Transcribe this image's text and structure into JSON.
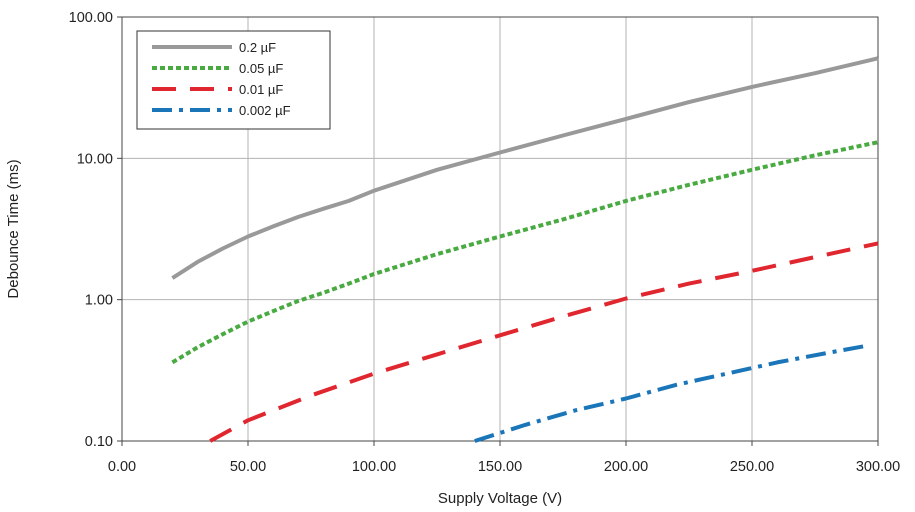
{
  "chart_data": {
    "type": "line",
    "title": "",
    "xlabel": "Supply Voltage (V)",
    "ylabel": "Debounce Time (ms)",
    "xlim": [
      0,
      300
    ],
    "ylim": [
      0.1,
      100
    ],
    "yscale": "log",
    "grid": true,
    "legend_position": "top-left",
    "x_ticks": [
      "0.00",
      "50.00",
      "100.00",
      "150.00",
      "200.00",
      "250.00",
      "300.00"
    ],
    "y_ticks": [
      {
        "value": 0.1,
        "label": "0.10"
      },
      {
        "value": 1,
        "label": "1.00"
      },
      {
        "value": 10,
        "label": "10.00"
      },
      {
        "value": 100,
        "label": "100.00"
      }
    ],
    "series": [
      {
        "name": "0.2 µF",
        "color": "#999999",
        "style": "solid",
        "points": [
          [
            20,
            1.42
          ],
          [
            30,
            1.85
          ],
          [
            40,
            2.3
          ],
          [
            50,
            2.8
          ],
          [
            60,
            3.3
          ],
          [
            70,
            3.85
          ],
          [
            80,
            4.4
          ],
          [
            90,
            5.0
          ],
          [
            100,
            5.9
          ],
          [
            125,
            8.3
          ],
          [
            150,
            11.0
          ],
          [
            175,
            14.5
          ],
          [
            200,
            19.0
          ],
          [
            225,
            25.0
          ],
          [
            250,
            32.0
          ],
          [
            275,
            40.0
          ],
          [
            300,
            51.0
          ]
        ]
      },
      {
        "name": "0.05 µF",
        "color": "#4aaa42",
        "style": "dotted",
        "points": [
          [
            20,
            0.36
          ],
          [
            30,
            0.46
          ],
          [
            40,
            0.57
          ],
          [
            50,
            0.7
          ],
          [
            60,
            0.83
          ],
          [
            70,
            0.98
          ],
          [
            80,
            1.12
          ],
          [
            90,
            1.3
          ],
          [
            100,
            1.52
          ],
          [
            125,
            2.1
          ],
          [
            150,
            2.8
          ],
          [
            175,
            3.7
          ],
          [
            200,
            5.0
          ],
          [
            225,
            6.5
          ],
          [
            250,
            8.3
          ],
          [
            275,
            10.5
          ],
          [
            300,
            13.0
          ]
        ]
      },
      {
        "name": "0.01 µF",
        "color": "#e0262e",
        "style": "dashed",
        "points": [
          [
            35,
            0.1
          ],
          [
            50,
            0.14
          ],
          [
            75,
            0.21
          ],
          [
            100,
            0.3
          ],
          [
            125,
            0.41
          ],
          [
            150,
            0.56
          ],
          [
            175,
            0.76
          ],
          [
            200,
            1.02
          ],
          [
            225,
            1.3
          ],
          [
            250,
            1.6
          ],
          [
            275,
            2.0
          ],
          [
            300,
            2.5
          ]
        ]
      },
      {
        "name": "0.002 µF",
        "color": "#1a75b9",
        "style": "dashdot",
        "points": [
          [
            140,
            0.1
          ],
          [
            160,
            0.13
          ],
          [
            180,
            0.165
          ],
          [
            200,
            0.2
          ],
          [
            220,
            0.25
          ],
          [
            240,
            0.3
          ],
          [
            260,
            0.36
          ],
          [
            280,
            0.42
          ],
          [
            295,
            0.47
          ]
        ]
      }
    ]
  }
}
